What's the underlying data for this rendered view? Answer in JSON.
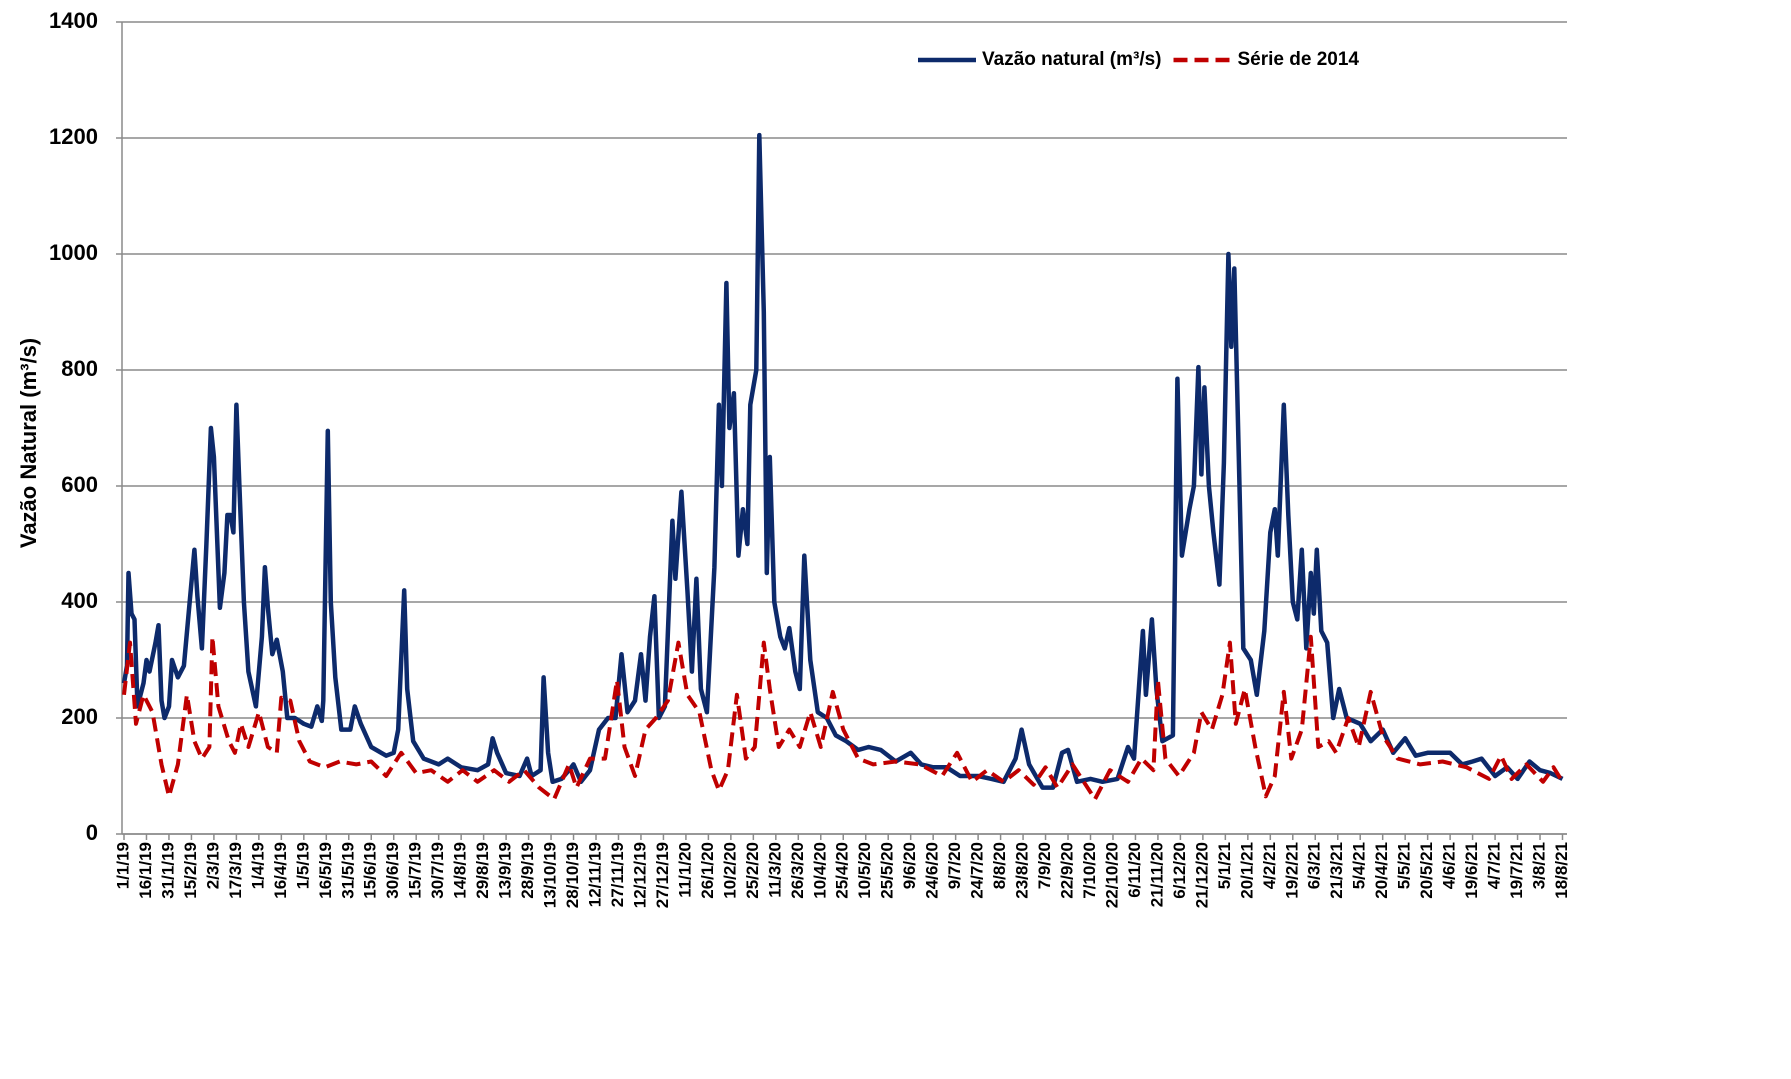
{
  "chart_data": {
    "type": "line",
    "y_label": "Vazão Natural  (m³/s)",
    "ylim": [
      0,
      1400
    ],
    "yticks": [
      0,
      200,
      400,
      600,
      800,
      1000,
      1200,
      1400
    ],
    "grid": true,
    "legend": "top-right",
    "xlim": [
      "1/1/19",
      "21/8/21"
    ],
    "xticks": [
      "1/1/19",
      "16/1/19",
      "31/1/19",
      "15/2/19",
      "2/3/19",
      "17/3/19",
      "1/4/19",
      "16/4/19",
      "1/5/19",
      "16/5/19",
      "31/5/19",
      "15/6/19",
      "30/6/19",
      "15/7/19",
      "30/7/19",
      "14/8/19",
      "29/8/19",
      "13/9/19",
      "28/9/19",
      "13/10/19",
      "28/10/19",
      "12/11/19",
      "27/11/19",
      "12/12/19",
      "27/12/19",
      "11/1/20",
      "26/1/20",
      "10/2/20",
      "25/2/20",
      "11/3/20",
      "26/3/20",
      "10/4/20",
      "25/4/20",
      "10/5/20",
      "25/5/20",
      "9/6/20",
      "24/6/20",
      "9/7/20",
      "24/7/20",
      "8/8/20",
      "23/8/20",
      "7/9/20",
      "22/9/20",
      "7/10/20",
      "22/10/20",
      "6/11/20",
      "21/11/20",
      "6/12/20",
      "21/12/20",
      "5/1/21",
      "20/1/21",
      "4/2/21",
      "19/2/21",
      "6/3/21",
      "21/3/21",
      "5/4/21",
      "20/4/21",
      "5/5/21",
      "20/5/21",
      "4/6/21",
      "19/6/21",
      "4/7/21",
      "19/7/21",
      "3/8/21",
      "18/8/21"
    ],
    "series": [
      {
        "name": "Vazão natural (m³/s)",
        "color": "#0d2a6b",
        "dash": false,
        "x": [
          "1/1/19",
          "3/1/19",
          "4/1/19",
          "6/1/19",
          "8/1/19",
          "10/1/19",
          "14/1/19",
          "16/1/19",
          "18/1/19",
          "22/1/19",
          "24/1/19",
          "26/1/19",
          "28/1/19",
          "31/1/19",
          "2/2/19",
          "6/2/19",
          "10/2/19",
          "17/2/19",
          "19/2/19",
          "22/2/19",
          "25/2/19",
          "28/2/19",
          "2/3/19",
          "6/3/19",
          "9/3/19",
          "11/3/19",
          "13/3/19",
          "15/3/19",
          "17/3/19",
          "19/3/19",
          "22/3/19",
          "25/3/19",
          "30/3/19",
          "3/4/19",
          "5/4/19",
          "7/4/19",
          "10/4/19",
          "13/4/19",
          "17/4/19",
          "20/4/19",
          "25/4/19",
          "1/5/19",
          "6/5/19",
          "10/5/19",
          "13/5/19",
          "14/5/19",
          "17/5/19",
          "19/5/19",
          "22/5/19",
          "26/5/19",
          "1/6/19",
          "4/6/19",
          "8/6/19",
          "15/6/19",
          "25/6/19",
          "30/6/19",
          "3/7/19",
          "7/7/19",
          "9/7/19",
          "13/7/19",
          "20/7/19",
          "30/7/19",
          "5/8/19",
          "14/8/19",
          "25/8/19",
          "1/9/19",
          "4/9/19",
          "7/9/19",
          "13/9/19",
          "22/9/19",
          "27/9/19",
          "30/9/19",
          "6/10/19",
          "8/10/19",
          "11/10/19",
          "14/10/19",
          "20/10/19",
          "25/10/19",
          "28/10/19",
          "2/11/19",
          "8/11/19",
          "14/11/19",
          "20/11/19",
          "25/11/19",
          "29/11/19",
          "3/12/19",
          "8/12/19",
          "12/12/19",
          "15/12/19",
          "18/12/19",
          "21/12/19",
          "24/12/19",
          "28/12/19",
          "2/1/20",
          "4/1/20",
          "8/1/20",
          "12/1/20",
          "15/1/20",
          "18/1/20",
          "21/1/20",
          "25/1/20",
          "30/1/20",
          "2/2/20",
          "4/2/20",
          "7/2/20",
          "9/2/20",
          "12/2/20",
          "15/2/20",
          "18/2/20",
          "21/2/20",
          "23/2/20",
          "27/2/20",
          "29/2/20",
          "3/3/20",
          "5/3/20",
          "7/3/20",
          "10/3/20",
          "14/3/20",
          "17/3/20",
          "20/3/20",
          "24/3/20",
          "27/3/20",
          "30/3/20",
          "3/4/20",
          "8/4/20",
          "14/4/20",
          "20/4/20",
          "27/4/20",
          "5/5/20",
          "12/5/20",
          "20/5/20",
          "30/5/20",
          "9/6/20",
          "16/6/20",
          "24/6/20",
          "3/7/20",
          "12/7/20",
          "24/7/20",
          "2/8/20",
          "10/8/20",
          "18/8/20",
          "22/8/20",
          "27/8/20",
          "5/9/20",
          "12/9/20",
          "18/9/20",
          "22/9/20",
          "28/9/20",
          "7/10/20",
          "15/10/20",
          "25/10/20",
          "1/11/20",
          "5/11/20",
          "11/11/20",
          "13/11/20",
          "17/11/20",
          "20/11/20",
          "24/11/20",
          "1/12/20",
          "4/12/20",
          "7/12/20",
          "12/12/20",
          "15/12/20",
          "18/12/20",
          "20/12/20",
          "22/12/20",
          "25/12/20",
          "28/12/20",
          "1/1/21",
          "4/1/21",
          "7/1/21",
          "9/1/21",
          "11/1/21",
          "14/1/21",
          "17/1/21",
          "22/1/21",
          "26/1/21",
          "31/1/21",
          "4/2/21",
          "7/2/21",
          "9/2/21",
          "13/2/21",
          "16/2/21",
          "19/2/21",
          "22/2/21",
          "25/2/21",
          "28/2/21",
          "3/3/21",
          "5/3/21",
          "7/3/21",
          "10/3/21",
          "14/3/21",
          "18/3/21",
          "22/3/21",
          "27/3/21",
          "5/4/21",
          "12/4/21",
          "20/4/21",
          "27/4/21",
          "5/5/21",
          "12/5/21",
          "20/5/21",
          "28/5/21",
          "4/6/21",
          "12/6/21",
          "19/6/21",
          "25/6/21",
          "4/7/21",
          "12/7/21",
          "19/7/21",
          "27/7/21",
          "3/8/21",
          "10/8/21",
          "18/8/21"
        ],
        "values": [
          260,
          290,
          450,
          380,
          370,
          220,
          260,
          300,
          280,
          330,
          360,
          230,
          200,
          220,
          300,
          270,
          290,
          490,
          410,
          320,
          500,
          700,
          650,
          390,
          450,
          550,
          550,
          520,
          740,
          600,
          400,
          280,
          220,
          340,
          460,
          390,
          310,
          335,
          280,
          200,
          200,
          190,
          185,
          220,
          195,
          230,
          695,
          400,
          270,
          180,
          180,
          220,
          190,
          150,
          135,
          140,
          180,
          420,
          250,
          160,
          130,
          120,
          130,
          115,
          110,
          120,
          165,
          140,
          105,
          100,
          130,
          100,
          110,
          270,
          140,
          90,
          95,
          110,
          120,
          90,
          110,
          180,
          200,
          200,
          310,
          210,
          230,
          310,
          230,
          340,
          410,
          200,
          220,
          540,
          440,
          590,
          420,
          280,
          440,
          250,
          210,
          460,
          740,
          600,
          950,
          700,
          760,
          480,
          560,
          500,
          740,
          800,
          1205,
          900,
          450,
          650,
          400,
          340,
          320,
          355,
          280,
          250,
          480,
          300,
          210,
          200,
          170,
          160,
          145,
          150,
          145,
          125,
          140,
          120,
          115,
          115,
          100,
          100,
          95,
          90,
          130,
          180,
          120,
          80,
          80,
          140,
          145,
          90,
          95,
          90,
          95,
          150,
          130,
          350,
          240,
          370,
          250,
          160,
          170,
          785,
          480,
          560,
          600,
          805,
          620,
          770,
          600,
          520,
          430,
          640,
          1000,
          840,
          975,
          650,
          320,
          300,
          240,
          350,
          520,
          560,
          480,
          740,
          550,
          400,
          370,
          490,
          320,
          450,
          380,
          490,
          350,
          330,
          200,
          250,
          200,
          190,
          160,
          180,
          140,
          165,
          135,
          140,
          140,
          140,
          120,
          125,
          130,
          100,
          115,
          95,
          125,
          110,
          105,
          95
        ]
      },
      {
        "name": "Série de 2014",
        "color": "#c00000",
        "dash": true,
        "x": [
          "1/1/19",
          "5/1/19",
          "9/1/19",
          "14/1/19",
          "20/1/19",
          "26/1/19",
          "31/1/19",
          "6/2/19",
          "12/2/19",
          "17/2/19",
          "22/2/19",
          "27/2/19",
          "1/3/19",
          "5/3/19",
          "12/3/19",
          "16/3/19",
          "20/3/19",
          "25/3/19",
          "1/4/19",
          "7/4/19",
          "13/4/19",
          "16/4/19",
          "22/4/19",
          "28/4/19",
          "5/5/19",
          "15/5/19",
          "25/5/19",
          "5/6/19",
          "15/6/19",
          "25/6/19",
          "5/7/19",
          "15/7/19",
          "25/7/19",
          "5/8/19",
          "15/8/19",
          "25/8/19",
          "5/9/19",
          "15/9/19",
          "25/9/19",
          "5/10/19",
          "15/10/19",
          "25/10/19",
          "30/10/19",
          "8/11/19",
          "18/11/19",
          "26/11/19",
          "1/12/19",
          "8/12/19",
          "15/12/19",
          "22/12/19",
          "30/12/19",
          "6/1/20",
          "12/1/20",
          "20/1/20",
          "28/1/20",
          "2/2/20",
          "8/2/20",
          "14/2/20",
          "20/2/20",
          "26/2/20",
          "3/3/20",
          "7/3/20",
          "13/3/20",
          "20/3/20",
          "27/3/20",
          "3/4/20",
          "10/4/20",
          "18/4/20",
          "25/4/20",
          "5/5/20",
          "15/5/20",
          "30/5/20",
          "15/6/20",
          "30/6/20",
          "10/7/20",
          "20/7/20",
          "30/7/20",
          "10/8/20",
          "20/8/20",
          "30/8/20",
          "7/9/20",
          "15/9/20",
          "25/9/20",
          "10/10/20",
          "20/10/20",
          "1/11/20",
          "10/11/20",
          "18/11/20",
          "21/11/20",
          "26/11/20",
          "5/12/20",
          "15/12/20",
          "20/12/20",
          "27/12/20",
          "3/1/21",
          "8/1/21",
          "12/1/21",
          "18/1/21",
          "25/1/21",
          "1/2/21",
          "7/2/21",
          "13/2/21",
          "18/2/21",
          "25/2/21",
          "3/3/21",
          "8/3/21",
          "15/3/21",
          "20/3/21",
          "28/3/21",
          "4/4/21",
          "12/4/21",
          "20/4/21",
          "30/4/21",
          "15/5/21",
          "30/5/21",
          "15/6/21",
          "30/6/21",
          "8/7/21",
          "15/7/21",
          "25/7/21",
          "5/8/21",
          "12/8/21",
          "18/8/21"
        ],
        "values": [
          240,
          330,
          190,
          240,
          210,
          120,
          65,
          120,
          240,
          160,
          130,
          150,
          340,
          220,
          160,
          140,
          190,
          150,
          210,
          150,
          140,
          235,
          230,
          160,
          125,
          115,
          125,
          120,
          125,
          100,
          140,
          105,
          110,
          90,
          110,
          90,
          110,
          90,
          110,
          80,
          60,
          120,
          80,
          130,
          130,
          265,
          150,
          100,
          180,
          200,
          230,
          330,
          240,
          210,
          110,
          75,
          110,
          240,
          130,
          150,
          330,
          250,
          150,
          180,
          150,
          210,
          150,
          245,
          180,
          130,
          120,
          125,
          120,
          100,
          140,
          90,
          110,
          90,
          110,
          85,
          115,
          80,
          120,
          60,
          110,
          90,
          130,
          110,
          265,
          130,
          100,
          140,
          210,
          180,
          240,
          330,
          190,
          250,
          150,
          65,
          100,
          245,
          130,
          180,
          340,
          150,
          160,
          140,
          200,
          150,
          245,
          170,
          130,
          120,
          125,
          115,
          95,
          135,
          95,
          120,
          90,
          115,
          90
        ]
      }
    ]
  }
}
